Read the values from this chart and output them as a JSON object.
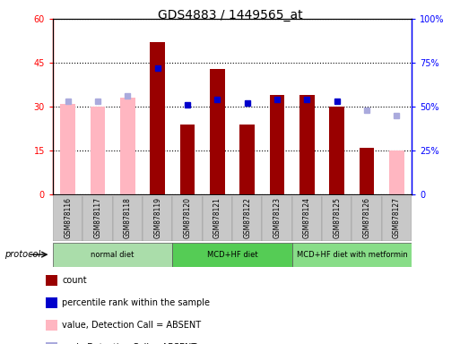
{
  "title": "GDS4883 / 1449565_at",
  "samples": [
    "GSM878116",
    "GSM878117",
    "GSM878118",
    "GSM878119",
    "GSM878120",
    "GSM878121",
    "GSM878122",
    "GSM878123",
    "GSM878124",
    "GSM878125",
    "GSM878126",
    "GSM878127"
  ],
  "count_values": [
    null,
    null,
    null,
    52,
    24,
    43,
    24,
    34,
    34,
    30,
    16,
    null
  ],
  "count_absent": [
    31,
    30,
    33,
    null,
    null,
    null,
    null,
    null,
    null,
    null,
    null,
    15
  ],
  "percentile_values": [
    null,
    null,
    null,
    72,
    51,
    54,
    52,
    54,
    54,
    53,
    null,
    null
  ],
  "percentile_absent": [
    53,
    53,
    56,
    null,
    null,
    null,
    null,
    null,
    null,
    null,
    48,
    45
  ],
  "bar_color_present": "#990000",
  "bar_color_absent_count": "#FFB6C1",
  "bar_color_present_pct": "#0000CC",
  "bar_color_absent_pct": "#AAAADD",
  "ylim_left": [
    0,
    60
  ],
  "ylim_right": [
    0,
    100
  ],
  "yticks_left": [
    0,
    15,
    30,
    45,
    60
  ],
  "yticks_right": [
    0,
    25,
    50,
    75,
    100
  ],
  "ytick_labels_left": [
    "0",
    "15",
    "30",
    "45",
    "60"
  ],
  "ytick_labels_right": [
    "0",
    "25%",
    "50%",
    "75%",
    "100%"
  ],
  "protocol_groups": [
    {
      "label": "normal diet",
      "start": 0,
      "end": 3,
      "color": "#AADDAA"
    },
    {
      "label": "MCD+HF diet",
      "start": 4,
      "end": 7,
      "color": "#55CC55"
    },
    {
      "label": "MCD+HF diet with metformin",
      "start": 8,
      "end": 11,
      "color": "#88DD88"
    }
  ],
  "legend_items": [
    {
      "label": "count",
      "color": "#990000"
    },
    {
      "label": "percentile rank within the sample",
      "color": "#0000CC"
    },
    {
      "label": "value, Detection Call = ABSENT",
      "color": "#FFB6C1"
    },
    {
      "label": "rank, Detection Call = ABSENT",
      "color": "#AAAADD"
    }
  ],
  "bar_width": 0.5,
  "marker_size": 5
}
